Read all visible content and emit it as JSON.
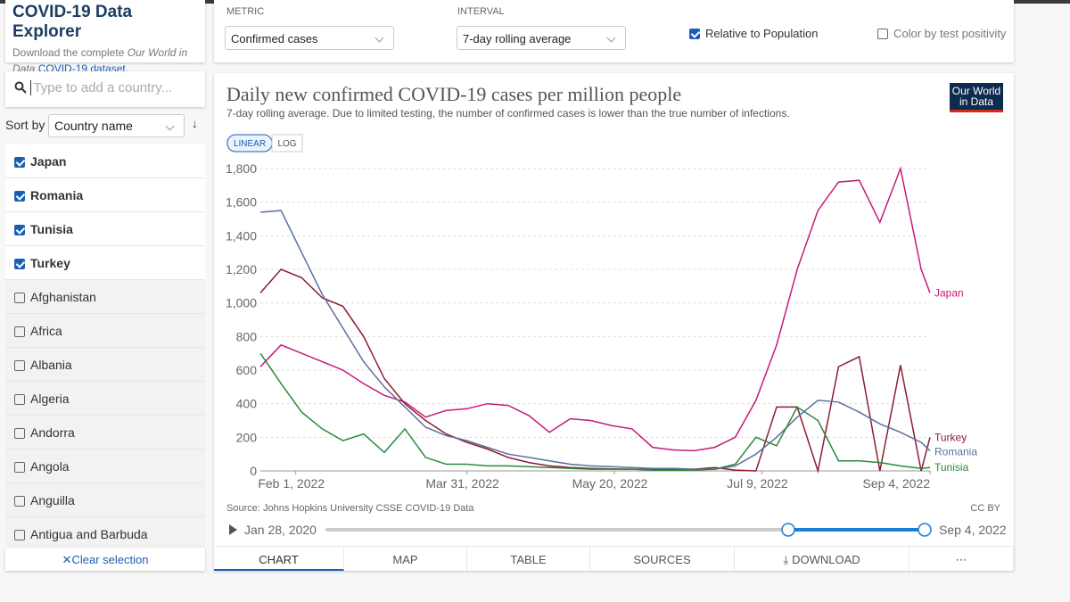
{
  "explorer": {
    "title": "COVID-19 Data Explorer",
    "intro": "Download the complete",
    "intro_italic": "Our World in",
    "intro_italic2": "Data",
    "intro_link": "COVID-19 dataset."
  },
  "search_placeholder": "Type to add a country...",
  "sort_label": "Sort by",
  "sort_value": "Country name",
  "countries": [
    {
      "name": "Japan",
      "checked": true
    },
    {
      "name": "Romania",
      "checked": true
    },
    {
      "name": "Tunisia",
      "checked": true
    },
    {
      "name": "Turkey",
      "checked": true
    },
    {
      "name": "Afghanistan",
      "checked": false
    },
    {
      "name": "Africa",
      "checked": false
    },
    {
      "name": "Albania",
      "checked": false
    },
    {
      "name": "Algeria",
      "checked": false
    },
    {
      "name": "Andorra",
      "checked": false
    },
    {
      "name": "Angola",
      "checked": false
    },
    {
      "name": "Anguilla",
      "checked": false
    },
    {
      "name": "Antigua and Barbuda",
      "checked": false
    }
  ],
  "clear_selection": "Clear selection",
  "controls": {
    "metric_label": "METRIC",
    "metric": "Confirmed cases",
    "interval_label": "INTERVAL",
    "interval": "7-day rolling average",
    "relative": {
      "label": "Relative to Population",
      "checked": true
    },
    "positivity": {
      "label": "Color by test positivity",
      "checked": false
    }
  },
  "chart_data": {
    "type": "line",
    "title": "Daily new confirmed COVID-19 cases per million people",
    "subtitle": "7-day rolling average. Due to limited testing, the number of confirmed cases is lower than the true number of infections.",
    "logo": [
      "Our World",
      "in Data"
    ],
    "scale_buttons": [
      "LINEAR",
      "LOG"
    ],
    "log_scale": false,
    "source": "Source: Johns Hopkins University CSSE COVID-19 Data",
    "license": "CC BY",
    "grid": true,
    "x": [
      "2022-01-20",
      "2022-01-27",
      "2022-02-03",
      "2022-02-10",
      "2022-02-17",
      "2022-02-24",
      "2022-03-03",
      "2022-03-10",
      "2022-03-17",
      "2022-03-24",
      "2022-03-31",
      "2022-04-07",
      "2022-04-14",
      "2022-04-21",
      "2022-04-28",
      "2022-05-05",
      "2022-05-12",
      "2022-05-19",
      "2022-05-26",
      "2022-06-02",
      "2022-06-09",
      "2022-06-16",
      "2022-06-23",
      "2022-06-30",
      "2022-07-07",
      "2022-07-14",
      "2022-07-21",
      "2022-07-28",
      "2022-08-04",
      "2022-08-11",
      "2022-08-18",
      "2022-08-25",
      "2022-09-01",
      "2022-09-04"
    ],
    "xlim": [
      "2022-01-20",
      "2022-09-04"
    ],
    "xticks": [
      {
        "value": "2022-02-01",
        "label": "Feb 1, 2022"
      },
      {
        "value": "2022-03-31",
        "label": "Mar 31, 2022"
      },
      {
        "value": "2022-05-20",
        "label": "May 20, 2022"
      },
      {
        "value": "2022-07-09",
        "label": "Jul 9, 2022"
      },
      {
        "value": "2022-09-04",
        "label": "Sep 4, 2022"
      }
    ],
    "ylim": [
      0,
      1800
    ],
    "yticks": [
      0,
      200,
      400,
      600,
      800,
      {
        "value": 1000,
        "label": "1,000"
      },
      {
        "value": 1200,
        "label": "1,200"
      },
      {
        "value": 1400,
        "label": "1,400"
      },
      {
        "value": 1600,
        "label": "1,600"
      },
      {
        "value": 1800,
        "label": "1,800"
      }
    ],
    "series": [
      {
        "name": "Japan",
        "color": "#c8197a",
        "values": [
          620,
          750,
          700,
          650,
          600,
          520,
          450,
          410,
          320,
          360,
          370,
          400,
          390,
          330,
          230,
          310,
          300,
          270,
          250,
          140,
          125,
          120,
          140,
          200,
          420,
          750,
          1200,
          1550,
          1720,
          1730,
          1480,
          1800,
          1200,
          1060
        ]
      },
      {
        "name": "Turkey",
        "color": "#8c1c32",
        "values": [
          1060,
          1200,
          1150,
          1030,
          980,
          800,
          550,
          400,
          300,
          220,
          170,
          130,
          80,
          50,
          30,
          20,
          15,
          12,
          10,
          8,
          10,
          10,
          20,
          5,
          0,
          380,
          380,
          0,
          620,
          680,
          0,
          630,
          0,
          200
        ]
      },
      {
        "name": "Romania",
        "color": "#5b6f9e",
        "values": [
          1540,
          1550,
          1300,
          1050,
          850,
          650,
          500,
          380,
          260,
          210,
          180,
          140,
          100,
          80,
          60,
          40,
          30,
          25,
          20,
          15,
          15,
          10,
          10,
          30,
          100,
          200,
          320,
          420,
          410,
          350,
          280,
          230,
          170,
          120
        ]
      },
      {
        "name": "Tunisia",
        "color": "#2a8a3a",
        "values": [
          700,
          520,
          350,
          250,
          180,
          220,
          110,
          250,
          80,
          40,
          40,
          30,
          30,
          25,
          20,
          15,
          10,
          10,
          10,
          5,
          5,
          5,
          10,
          40,
          200,
          150,
          380,
          300,
          60,
          60,
          50,
          30,
          15,
          20
        ]
      }
    ]
  },
  "timeline": {
    "start": "Jan 28, 2020",
    "end": "Sep 4, 2022"
  },
  "tabs": [
    "CHART",
    "MAP",
    "TABLE",
    "SOURCES",
    "DOWNLOAD"
  ],
  "active_tab": "CHART"
}
